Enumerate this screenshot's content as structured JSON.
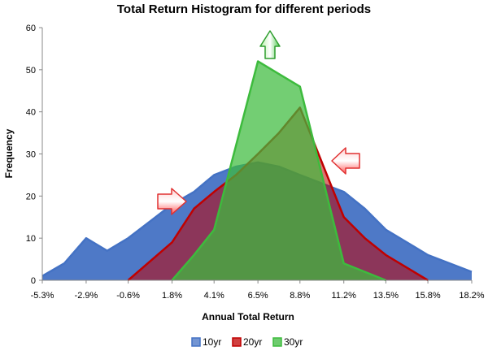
{
  "chart_data": {
    "type": "area",
    "title": "Total Return Histogram for different periods",
    "xlabel": "Annual Total Return",
    "ylabel": "Frequency",
    "ylim": [
      0,
      60
    ],
    "yticks": [
      0,
      10,
      20,
      30,
      40,
      50,
      60
    ],
    "xticks": [
      "-5.3%",
      "-2.9%",
      "-0.6%",
      "1.8%",
      "4.1%",
      "6.5%",
      "8.8%",
      "11.2%",
      "13.5%",
      "15.8%",
      "18.2%"
    ],
    "xlim": [
      -5.3,
      18.2
    ],
    "grid": false,
    "legend_position": "bottom",
    "series": [
      {
        "name": "10yr",
        "color": "#4472C4",
        "points": [
          [
            -5.3,
            1
          ],
          [
            -4.1,
            4
          ],
          [
            -2.9,
            10
          ],
          [
            -1.75,
            7
          ],
          [
            -0.6,
            10
          ],
          [
            0.6,
            14
          ],
          [
            1.8,
            18
          ],
          [
            3.0,
            21
          ],
          [
            4.1,
            25
          ],
          [
            5.3,
            27
          ],
          [
            6.5,
            28
          ],
          [
            7.65,
            27
          ],
          [
            8.8,
            25
          ],
          [
            10.0,
            23
          ],
          [
            11.2,
            21
          ],
          [
            12.35,
            17
          ],
          [
            13.5,
            12
          ],
          [
            14.65,
            9
          ],
          [
            15.8,
            6
          ],
          [
            17.0,
            4
          ],
          [
            18.2,
            2
          ]
        ]
      },
      {
        "name": "20yr",
        "color": "#C00000",
        "points": [
          [
            -0.6,
            0
          ],
          [
            1.8,
            9
          ],
          [
            3.0,
            17
          ],
          [
            4.1,
            21
          ],
          [
            5.3,
            25
          ],
          [
            6.5,
            30
          ],
          [
            7.65,
            35
          ],
          [
            8.8,
            41
          ],
          [
            10.0,
            28
          ],
          [
            11.2,
            15
          ],
          [
            12.35,
            10
          ],
          [
            13.5,
            6
          ],
          [
            14.65,
            3
          ],
          [
            15.8,
            0
          ]
        ]
      },
      {
        "name": "30yr",
        "color": "#3DBB3D",
        "points": [
          [
            1.8,
            0
          ],
          [
            3.0,
            6
          ],
          [
            4.1,
            12
          ],
          [
            5.3,
            32
          ],
          [
            6.5,
            52
          ],
          [
            7.65,
            49
          ],
          [
            8.8,
            46
          ],
          [
            10.0,
            25
          ],
          [
            11.2,
            4
          ],
          [
            12.35,
            2
          ],
          [
            13.5,
            0
          ]
        ]
      }
    ],
    "annotations": [
      {
        "type": "arrow-up",
        "color": "#3DBB3D"
      },
      {
        "type": "arrow-right",
        "color": "#E03030"
      },
      {
        "type": "arrow-left",
        "color": "#E03030"
      }
    ]
  }
}
